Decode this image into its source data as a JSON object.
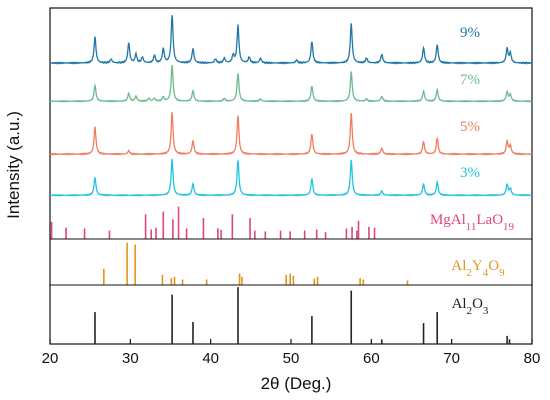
{
  "chart_data": {
    "type": "line",
    "xlabel": "2θ (Deg.)",
    "ylabel": "Intensity (a.u.)",
    "xlim": [
      20,
      80
    ],
    "x_ticks": [
      20,
      30,
      40,
      50,
      60,
      70,
      80
    ],
    "grid": false,
    "series": [
      {
        "name": "9%",
        "color": "#1f78a8",
        "baseline": 0.02,
        "peaks": [
          [
            25.6,
            0.55
          ],
          [
            27.6,
            0.08
          ],
          [
            29.8,
            0.42
          ],
          [
            30.7,
            0.18
          ],
          [
            31.5,
            0.12
          ],
          [
            33.0,
            0.16
          ],
          [
            34.1,
            0.3
          ],
          [
            35.2,
            1.0
          ],
          [
            37.8,
            0.3
          ],
          [
            40.6,
            0.08
          ],
          [
            41.7,
            0.1
          ],
          [
            42.8,
            0.16
          ],
          [
            43.4,
            0.78
          ],
          [
            44.8,
            0.12
          ],
          [
            46.2,
            0.1
          ],
          [
            50.7,
            0.06
          ],
          [
            52.6,
            0.45
          ],
          [
            57.5,
            0.82
          ],
          [
            59.4,
            0.1
          ],
          [
            61.3,
            0.18
          ],
          [
            66.5,
            0.32
          ],
          [
            68.2,
            0.38
          ],
          [
            76.9,
            0.3
          ],
          [
            77.3,
            0.2
          ]
        ]
      },
      {
        "name": "7%",
        "color": "#6dba8f",
        "baseline": 0.02,
        "peaks": [
          [
            25.6,
            0.45
          ],
          [
            29.8,
            0.22
          ],
          [
            30.7,
            0.14
          ],
          [
            32.3,
            0.08
          ],
          [
            33.0,
            0.08
          ],
          [
            34.1,
            0.12
          ],
          [
            35.2,
            1.0
          ],
          [
            37.8,
            0.3
          ],
          [
            41.7,
            0.08
          ],
          [
            43.4,
            0.78
          ],
          [
            46.2,
            0.06
          ],
          [
            52.6,
            0.42
          ],
          [
            57.5,
            0.82
          ],
          [
            59.4,
            0.06
          ],
          [
            61.3,
            0.14
          ],
          [
            66.5,
            0.28
          ],
          [
            68.2,
            0.32
          ],
          [
            76.9,
            0.26
          ],
          [
            77.3,
            0.18
          ]
        ]
      },
      {
        "name": "5%",
        "color": "#f07d5e",
        "baseline": 0.02,
        "peaks": [
          [
            25.6,
            0.65
          ],
          [
            29.8,
            0.08
          ],
          [
            35.2,
            1.0
          ],
          [
            37.8,
            0.32
          ],
          [
            43.4,
            0.92
          ],
          [
            52.6,
            0.48
          ],
          [
            57.5,
            0.98
          ],
          [
            61.3,
            0.14
          ],
          [
            66.5,
            0.3
          ],
          [
            68.2,
            0.38
          ],
          [
            76.9,
            0.3
          ],
          [
            77.3,
            0.2
          ]
        ]
      },
      {
        "name": "3%",
        "color": "#22c3e0",
        "baseline": 0.02,
        "peaks": [
          [
            25.6,
            0.5
          ],
          [
            35.2,
            1.0
          ],
          [
            37.8,
            0.32
          ],
          [
            43.4,
            0.98
          ],
          [
            52.6,
            0.46
          ],
          [
            57.5,
            0.98
          ],
          [
            61.3,
            0.12
          ],
          [
            66.5,
            0.32
          ],
          [
            68.2,
            0.36
          ],
          [
            76.9,
            0.3
          ],
          [
            77.3,
            0.18
          ]
        ]
      }
    ],
    "references": [
      {
        "label": "MgAl11LaO19",
        "label_base": "MgAl",
        "label_parts": [
          {
            "text": "MgAl",
            "sub": false
          },
          {
            "text": "11",
            "sub": true
          },
          {
            "text": "LaO",
            "sub": false
          },
          {
            "text": "19",
            "sub": true
          }
        ],
        "color": "#e0457b",
        "lines": [
          [
            20.2,
            0.45
          ],
          [
            22.0,
            0.3
          ],
          [
            24.3,
            0.28
          ],
          [
            27.4,
            0.22
          ],
          [
            31.9,
            0.65
          ],
          [
            32.6,
            0.25
          ],
          [
            33.2,
            0.3
          ],
          [
            34.1,
            0.72
          ],
          [
            35.3,
            0.52
          ],
          [
            36.0,
            0.85
          ],
          [
            37.0,
            0.28
          ],
          [
            39.1,
            0.55
          ],
          [
            40.9,
            0.28
          ],
          [
            41.3,
            0.24
          ],
          [
            42.7,
            0.65
          ],
          [
            44.9,
            0.55
          ],
          [
            45.5,
            0.22
          ],
          [
            46.8,
            0.2
          ],
          [
            48.7,
            0.22
          ],
          [
            49.9,
            0.2
          ],
          [
            51.7,
            0.22
          ],
          [
            53.2,
            0.25
          ],
          [
            54.3,
            0.18
          ],
          [
            56.9,
            0.28
          ],
          [
            57.6,
            0.32
          ],
          [
            58.2,
            0.22
          ],
          [
            58.4,
            0.48
          ],
          [
            59.7,
            0.32
          ],
          [
            60.4,
            0.3
          ]
        ]
      },
      {
        "label": "Al2Y4O9",
        "label_base": "Al",
        "label_parts": [
          {
            "text": "Al",
            "sub": false
          },
          {
            "text": "2",
            "sub": true
          },
          {
            "text": "Y",
            "sub": false
          },
          {
            "text": "4",
            "sub": true
          },
          {
            "text": "O",
            "sub": false
          },
          {
            "text": "9",
            "sub": true
          }
        ],
        "color": "#e6931e",
        "lines": [
          [
            26.7,
            0.35
          ],
          [
            29.6,
            0.92
          ],
          [
            30.6,
            0.88
          ],
          [
            34.0,
            0.22
          ],
          [
            35.1,
            0.15
          ],
          [
            35.5,
            0.18
          ],
          [
            36.5,
            0.12
          ],
          [
            39.5,
            0.12
          ],
          [
            43.6,
            0.25
          ],
          [
            43.9,
            0.18
          ],
          [
            49.4,
            0.22
          ],
          [
            49.9,
            0.25
          ],
          [
            50.3,
            0.2
          ],
          [
            52.9,
            0.14
          ],
          [
            53.3,
            0.18
          ],
          [
            58.6,
            0.15
          ],
          [
            59.0,
            0.12
          ],
          [
            64.5,
            0.1
          ]
        ]
      },
      {
        "label": "Al2O3",
        "label_base": "Al",
        "label_parts": [
          {
            "text": "Al",
            "sub": false
          },
          {
            "text": "2",
            "sub": true
          },
          {
            "text": "O",
            "sub": false
          },
          {
            "text": "3",
            "sub": true
          }
        ],
        "color": "#222222",
        "lines": [
          [
            25.6,
            0.55
          ],
          [
            35.2,
            0.85
          ],
          [
            37.8,
            0.38
          ],
          [
            43.4,
            0.98
          ],
          [
            52.6,
            0.48
          ],
          [
            57.5,
            0.92
          ],
          [
            61.3,
            0.08
          ],
          [
            66.5,
            0.36
          ],
          [
            68.2,
            0.55
          ],
          [
            76.9,
            0.14
          ],
          [
            77.2,
            0.08
          ]
        ]
      }
    ]
  }
}
